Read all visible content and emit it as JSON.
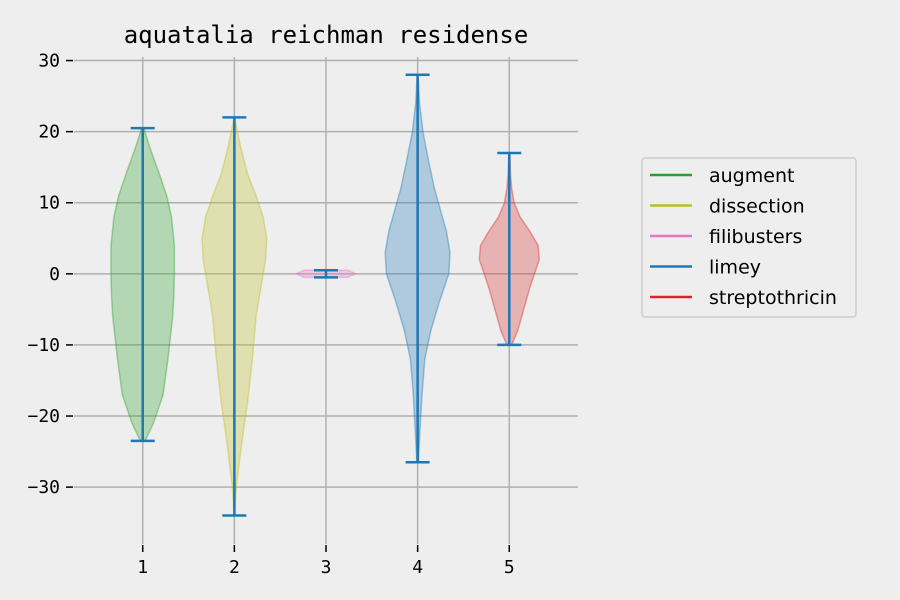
{
  "chart_data": {
    "type": "violin",
    "title": "aquatalia reichman residense",
    "xlabel": "",
    "ylabel": "",
    "categories": [
      "1",
      "2",
      "3",
      "4",
      "5"
    ],
    "ylim": [
      -38,
      30.5
    ],
    "yticks": [
      30,
      20,
      10,
      0,
      -10,
      -20,
      -30
    ],
    "grid": true,
    "legend_position": "right",
    "series": [
      {
        "name": "augment",
        "color": "#2ca02c",
        "position": 1,
        "min": -23.5,
        "max": 20.5,
        "density": [
          [
            -23.5,
            0.1
          ],
          [
            -21,
            0.45
          ],
          [
            -17,
            0.85
          ],
          [
            -12,
            1.05
          ],
          [
            -6,
            1.25
          ],
          [
            -3,
            1.3
          ],
          [
            0,
            1.32
          ],
          [
            4,
            1.32
          ],
          [
            8,
            1.2
          ],
          [
            11,
            1.0
          ],
          [
            14,
            0.7
          ],
          [
            17,
            0.38
          ],
          [
            19,
            0.18
          ],
          [
            20.5,
            0.05
          ]
        ]
      },
      {
        "name": "dissection",
        "color": "#bcbd22",
        "position": 2,
        "min": -34,
        "max": 22,
        "density": [
          [
            -34,
            0.02
          ],
          [
            -30,
            0.08
          ],
          [
            -24,
            0.3
          ],
          [
            -18,
            0.55
          ],
          [
            -12,
            0.75
          ],
          [
            -6,
            0.9
          ],
          [
            -2,
            1.1
          ],
          [
            2,
            1.3
          ],
          [
            5,
            1.35
          ],
          [
            8,
            1.2
          ],
          [
            11,
            0.9
          ],
          [
            14,
            0.55
          ],
          [
            18,
            0.25
          ],
          [
            21,
            0.07
          ],
          [
            22,
            0.02
          ]
        ]
      },
      {
        "name": "filibusters",
        "color": "#e377c2",
        "position": 3,
        "min": -0.5,
        "max": 0.5,
        "density": [
          [
            -0.5,
            0.9
          ],
          [
            0,
            1.25
          ],
          [
            0.5,
            0.9
          ]
        ]
      },
      {
        "name": "limey",
        "color": "#1f77b4",
        "position": 4,
        "min": -26.5,
        "max": 28,
        "density": [
          [
            -26.5,
            0.03
          ],
          [
            -22,
            0.1
          ],
          [
            -17,
            0.18
          ],
          [
            -12,
            0.3
          ],
          [
            -8,
            0.55
          ],
          [
            -4,
            0.9
          ],
          [
            0,
            1.3
          ],
          [
            3,
            1.35
          ],
          [
            6,
            1.2
          ],
          [
            9,
            0.95
          ],
          [
            12,
            0.7
          ],
          [
            16,
            0.45
          ],
          [
            20,
            0.22
          ],
          [
            24,
            0.08
          ],
          [
            28,
            0.02
          ]
        ]
      },
      {
        "name": "streptothricin",
        "color": "#d62728",
        "position": 5,
        "min": -10,
        "max": 17,
        "density": [
          [
            -10,
            0.1
          ],
          [
            -8,
            0.35
          ],
          [
            -5,
            0.6
          ],
          [
            -2,
            0.85
          ],
          [
            0,
            1.05
          ],
          [
            2,
            1.25
          ],
          [
            4,
            1.2
          ],
          [
            6,
            0.85
          ],
          [
            8,
            0.45
          ],
          [
            10,
            0.2
          ],
          [
            12,
            0.1
          ],
          [
            14,
            0.05
          ],
          [
            17,
            0.02
          ]
        ]
      }
    ],
    "legend": [
      "augment",
      "dissection",
      "filibusters",
      "limey",
      "streptothricin"
    ],
    "whisker_color": "#1f77b4"
  }
}
